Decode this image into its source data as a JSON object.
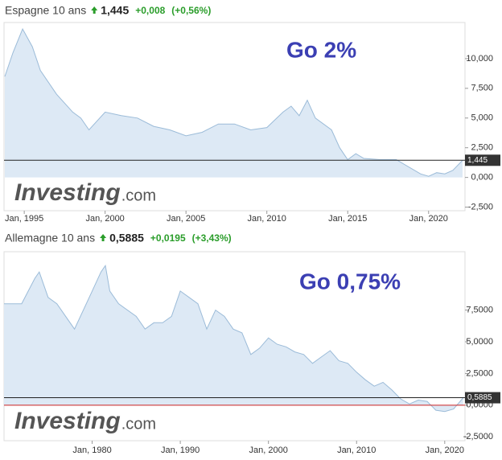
{
  "chart_data": [
    {
      "type": "area",
      "title": "Espagne 10 ans",
      "last": {
        "value": 1.445,
        "label": "1,445"
      },
      "change": "+0,008",
      "change_pct": "(+0,56%)",
      "annotation": "Go 2%",
      "brand": "Investing",
      "brand_suffix": ".com",
      "color": "#9bbbd8",
      "x": [
        1993.8,
        1994.3,
        1994.9,
        1995.5,
        1996,
        1997,
        1998,
        1998.5,
        1999,
        2000,
        2001,
        2002,
        2003,
        2004,
        2005,
        2006,
        2007,
        2008,
        2009,
        2010,
        2011,
        2011.5,
        2012,
        2012.5,
        2013,
        2014,
        2014.5,
        2015,
        2015.5,
        2016,
        2017,
        2018,
        2019.5,
        2020,
        2020.5,
        2021,
        2021.5,
        2022.1
      ],
      "values": [
        8.5,
        10.5,
        12.5,
        11,
        9,
        7,
        5.5,
        5,
        4,
        5.5,
        5.2,
        5,
        4.3,
        4,
        3.5,
        3.8,
        4.5,
        4.5,
        4,
        4.2,
        5.5,
        6,
        5.2,
        6.5,
        5,
        4,
        2.5,
        1.5,
        2,
        1.6,
        1.5,
        1.5,
        0.3,
        0.1,
        0.4,
        0.3,
        0.6,
        1.445
      ],
      "xlim": [
        1993.75,
        2022.25
      ],
      "xticks": [
        {
          "value": 1995,
          "label": "Jan, 1995"
        },
        {
          "value": 2000,
          "label": "Jan, 2000"
        },
        {
          "value": 2005,
          "label": "Jan, 2005"
        },
        {
          "value": 2010,
          "label": "Jan, 2010"
        },
        {
          "value": 2015,
          "label": "Jan, 2015"
        },
        {
          "value": 2020,
          "label": "Jan, 2020"
        }
      ],
      "ylim": [
        -2.8,
        13.04
      ],
      "yticks": [
        {
          "value": 10,
          "label": "10,000"
        },
        {
          "value": 7.5,
          "label": "7,500"
        },
        {
          "value": 5,
          "label": "5,000"
        },
        {
          "value": 2.5,
          "label": "2,500"
        },
        {
          "value": 0,
          "label": "0,000"
        },
        {
          "value": -2.5,
          "label": "-2,500"
        }
      ]
    },
    {
      "type": "area",
      "title": "Allemagne 10 ans",
      "last": {
        "value": 0.5885,
        "label": "0,5885"
      },
      "change": "+0,0195",
      "change_pct": "(+3,43%)",
      "annotation": "Go 0,75%",
      "brand": "Investing",
      "brand_suffix": ".com",
      "color": "#9bbbd8",
      "zero_line": "#cc2222",
      "x": [
        1970,
        1972,
        1973.5,
        1974,
        1975,
        1976,
        1978,
        1979,
        1980,
        1981,
        1981.5,
        1982,
        1983,
        1985,
        1986,
        1987,
        1988,
        1989,
        1990,
        1991,
        1992,
        1993,
        1994,
        1995,
        1996,
        1997,
        1998,
        1999,
        2000,
        2001,
        2002,
        2003,
        2004,
        2005,
        2006,
        2007,
        2008,
        2009,
        2010,
        2011,
        2012,
        2013,
        2014,
        2015,
        2016,
        2017,
        2018,
        2019,
        2020,
        2021,
        2022.1
      ],
      "values": [
        8,
        8,
        10,
        10.5,
        8.5,
        8,
        6,
        7.5,
        9,
        10.5,
        11,
        9,
        8,
        7,
        6,
        6.5,
        6.5,
        7,
        9,
        8.5,
        8,
        6,
        7.5,
        7,
        6,
        5.7,
        4,
        4.5,
        5.3,
        4.8,
        4.6,
        4.2,
        4,
        3.3,
        3.8,
        4.3,
        3.5,
        3.3,
        2.6,
        2,
        1.5,
        1.8,
        1.2,
        0.5,
        0.1,
        0.4,
        0.3,
        -0.4,
        -0.5,
        -0.3,
        0.5885
      ],
      "xlim": [
        1970,
        2022.3
      ],
      "xticks": [
        {
          "value": 1980,
          "label": "Jan, 1980"
        },
        {
          "value": 1990,
          "label": "Jan, 1990"
        },
        {
          "value": 2000,
          "label": "Jan, 2000"
        },
        {
          "value": 2010,
          "label": "Jan, 2010"
        },
        {
          "value": 2020,
          "label": "Jan, 2020"
        }
      ],
      "ylim": [
        -2.8,
        12.1
      ],
      "yticks": [
        {
          "value": 7.5,
          "label": "7,5000"
        },
        {
          "value": 5,
          "label": "5,0000"
        },
        {
          "value": 2.5,
          "label": "2,5000"
        },
        {
          "value": 0,
          "label": "0,0000"
        },
        {
          "value": -2.5,
          "label": "-2,5000"
        }
      ]
    }
  ]
}
